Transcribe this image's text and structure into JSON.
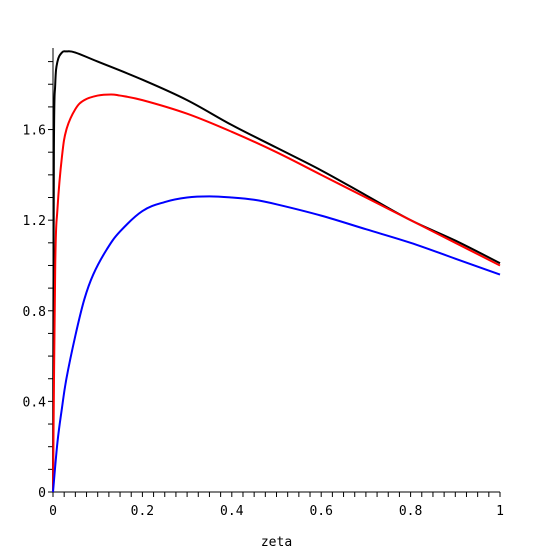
{
  "chart_data": {
    "type": "line",
    "xlabel": "zeta",
    "ylabel": "",
    "xlim": [
      0,
      1
    ],
    "ylim": [
      0,
      1.96
    ],
    "x_ticks": [
      0,
      0.2,
      0.4,
      0.6,
      0.8,
      1
    ],
    "x_tick_labels": [
      "0",
      "0.2",
      "0.4",
      "0.6",
      "0.8",
      "1"
    ],
    "y_ticks": [
      0,
      0.4,
      0.8,
      1.2,
      1.6
    ],
    "y_tick_labels": [
      "0",
      "0.4",
      "0.8",
      "1.2",
      "1.6"
    ],
    "grid": false,
    "legend": "none",
    "series": [
      {
        "color": "#000000",
        "x": [
          0,
          0.002,
          0.005,
          0.01,
          0.02,
          0.03,
          0.05,
          0.1,
          0.2,
          0.3,
          0.4,
          0.5,
          0.6,
          0.7,
          0.8,
          0.9,
          1.0
        ],
        "y": [
          0,
          1.5,
          1.8,
          1.9,
          1.94,
          1.945,
          1.94,
          1.9,
          1.82,
          1.73,
          1.62,
          1.52,
          1.42,
          1.31,
          1.2,
          1.11,
          1.01
        ]
      },
      {
        "color": "#ff0000",
        "x": [
          0,
          0.005,
          0.01,
          0.02,
          0.03,
          0.05,
          0.07,
          0.1,
          0.13,
          0.15,
          0.2,
          0.3,
          0.4,
          0.5,
          0.6,
          0.7,
          0.8,
          0.9,
          1.0
        ],
        "y": [
          0,
          1.0,
          1.25,
          1.48,
          1.6,
          1.69,
          1.73,
          1.75,
          1.755,
          1.75,
          1.73,
          1.67,
          1.59,
          1.5,
          1.4,
          1.3,
          1.2,
          1.1,
          1.0
        ]
      },
      {
        "color": "#0000ff",
        "x": [
          0,
          0.01,
          0.02,
          0.03,
          0.05,
          0.07,
          0.09,
          0.12,
          0.15,
          0.2,
          0.25,
          0.3,
          0.35,
          0.4,
          0.45,
          0.5,
          0.6,
          0.7,
          0.8,
          0.9,
          1.0
        ],
        "y": [
          0,
          0.22,
          0.37,
          0.5,
          0.69,
          0.85,
          0.96,
          1.07,
          1.15,
          1.24,
          1.28,
          1.3,
          1.305,
          1.3,
          1.29,
          1.27,
          1.22,
          1.16,
          1.1,
          1.03,
          0.96
        ]
      }
    ]
  }
}
